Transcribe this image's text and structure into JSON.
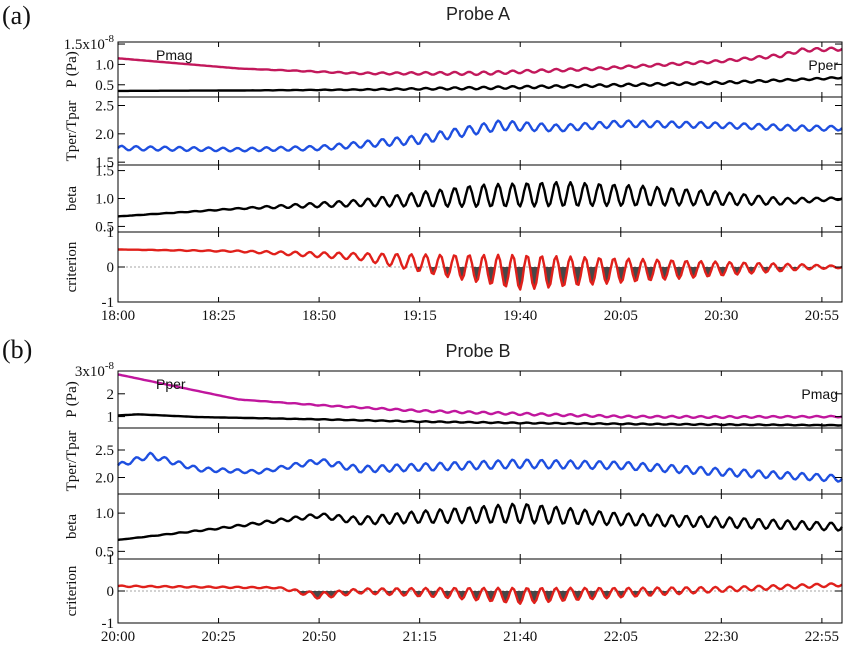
{
  "chart_data": [
    {
      "type": "line",
      "panel_label": "(a)",
      "title": "Probe A",
      "x_ticks": [
        "18:00",
        "18:25",
        "18:50",
        "19:15",
        "19:40",
        "20:05",
        "20:30",
        "20:55"
      ],
      "xlim": [
        "18:00",
        "21:00"
      ],
      "subplots": [
        {
          "ylabel": "P (Pa)",
          "ylim": [
            0.2,
            1.55
          ],
          "yticks": [
            "0.5",
            "1.0",
            "1.5x10-8"
          ],
          "tick_values": [
            0.5,
            1.0,
            1.5
          ],
          "exponent_note": "x10-8",
          "annotations": [
            {
              "text": "Pmag",
              "anchor": "top-left"
            },
            {
              "text": "Pper",
              "anchor": "right"
            }
          ],
          "series": [
            {
              "name": "Pmag",
              "color": "#c2185b",
              "x": [
                "18:00",
                "18:30",
                "19:00",
                "19:30",
                "20:00",
                "20:30",
                "20:45",
                "20:50",
                "21:00"
              ],
              "y": [
                1.15,
                0.9,
                0.78,
                0.78,
                0.9,
                1.08,
                1.22,
                1.35,
                1.38
              ],
              "ripple_amp": [
                0,
                0,
                0.02,
                0.04,
                0.03,
                0.03,
                0.04,
                0.04,
                0.04
              ]
            },
            {
              "name": "Pper",
              "color": "#000000",
              "x": [
                "18:00",
                "18:30",
                "19:00",
                "19:30",
                "20:00",
                "20:30",
                "20:55",
                "21:00"
              ],
              "y": [
                0.35,
                0.36,
                0.38,
                0.42,
                0.48,
                0.55,
                0.65,
                0.68
              ],
              "ripple_amp": [
                0,
                0,
                0.01,
                0.03,
                0.03,
                0.03,
                0.02,
                0.02
              ]
            }
          ]
        },
        {
          "ylabel": "Tper/Tpar",
          "ylim": [
            1.45,
            2.65
          ],
          "yticks": [
            "1.5",
            "2.0",
            "2.5"
          ],
          "tick_values": [
            1.5,
            2.0,
            2.5
          ],
          "series": [
            {
              "name": "",
              "color": "#1e4fe0",
              "x": [
                "18:00",
                "18:30",
                "18:50",
                "19:15",
                "19:35",
                "19:50",
                "20:05",
                "20:30",
                "20:50",
                "21:00"
              ],
              "y": [
                1.75,
                1.72,
                1.75,
                1.9,
                2.15,
                2.1,
                2.18,
                2.15,
                2.1,
                2.1
              ],
              "ripple_amp": [
                0.04,
                0.03,
                0.04,
                0.08,
                0.09,
                0.06,
                0.06,
                0.05,
                0.05,
                0.04
              ]
            }
          ]
        },
        {
          "ylabel": "beta",
          "ylim": [
            0.4,
            1.6
          ],
          "yticks": [
            "0.5",
            "1.0",
            "1.5"
          ],
          "tick_values": [
            0.5,
            1.0,
            1.5
          ],
          "series": [
            {
              "name": "",
              "color": "#000000",
              "x": [
                "18:00",
                "18:30",
                "19:00",
                "19:30",
                "19:50",
                "20:10",
                "20:30",
                "20:45",
                "21:00"
              ],
              "y": [
                0.68,
                0.82,
                0.92,
                1.05,
                1.08,
                1.05,
                1.0,
                0.95,
                1.0
              ],
              "ripple_amp": [
                0,
                0.01,
                0.06,
                0.2,
                0.22,
                0.18,
                0.12,
                0.06,
                0.02
              ]
            }
          ]
        },
        {
          "ylabel": "criterion",
          "ylim": [
            -1,
            1
          ],
          "yticks": [
            "-1",
            "0",
            "1"
          ],
          "tick_values": [
            -1,
            0,
            1
          ],
          "series": [
            {
              "name": "",
              "color": "#e0201b",
              "x": [
                "18:00",
                "18:30",
                "19:00",
                "19:20",
                "19:40",
                "20:05",
                "20:30",
                "20:50",
                "21:00"
              ],
              "y": [
                0.5,
                0.45,
                0.3,
                0.05,
                -0.15,
                -0.1,
                -0.05,
                0.0,
                0.0
              ],
              "ripple_amp": [
                0,
                0.02,
                0.1,
                0.3,
                0.5,
                0.35,
                0.2,
                0.08,
                0.03
              ]
            }
          ]
        }
      ]
    },
    {
      "type": "line",
      "panel_label": "(b)",
      "title": "Probe B",
      "x_ticks": [
        "20:00",
        "20:25",
        "20:50",
        "21:15",
        "21:40",
        "22:05",
        "22:30",
        "22:55"
      ],
      "xlim": [
        "20:00",
        "23:00"
      ],
      "subplots": [
        {
          "ylabel": "P (Pa)",
          "ylim": [
            0.5,
            3.0
          ],
          "yticks": [
            "1",
            "2",
            "3x10-8"
          ],
          "tick_values": [
            1,
            2,
            3
          ],
          "exponent_note": "x10-8",
          "annotations": [
            {
              "text": "Pper",
              "anchor": "top-left"
            },
            {
              "text": "Pmag",
              "anchor": "right"
            }
          ],
          "series": [
            {
              "name": "Pmag",
              "color": "#c0169d",
              "x": [
                "20:00",
                "20:15",
                "20:30",
                "20:50",
                "21:15",
                "21:40",
                "22:05",
                "22:30",
                "23:00"
              ],
              "y": [
                2.85,
                2.3,
                1.75,
                1.5,
                1.25,
                1.12,
                1.0,
                0.98,
                1.0
              ],
              "ripple_amp": [
                0,
                0,
                0,
                0.02,
                0.04,
                0.05,
                0.04,
                0.04,
                0.03
              ]
            },
            {
              "name": "Pper",
              "color": "#000000",
              "x": [
                "20:00",
                "20:05",
                "20:20",
                "20:50",
                "21:15",
                "21:40",
                "22:05",
                "22:30",
                "23:00"
              ],
              "y": [
                1.05,
                1.1,
                0.98,
                0.88,
                0.78,
                0.72,
                0.68,
                0.65,
                0.62
              ],
              "ripple_amp": [
                0,
                0,
                0,
                0.01,
                0.02,
                0.02,
                0.02,
                0.02,
                0.01
              ]
            }
          ]
        },
        {
          "ylabel": "Tper/Tpar",
          "ylim": [
            1.7,
            2.9
          ],
          "yticks": [
            "2.0",
            "2.5"
          ],
          "tick_values": [
            2.0,
            2.5
          ],
          "series": [
            {
              "name": "",
              "color": "#1e4fe0",
              "x": [
                "20:00",
                "20:08",
                "20:20",
                "20:35",
                "20:50",
                "21:00",
                "21:40",
                "22:05",
                "22:30",
                "23:00"
              ],
              "y": [
                2.22,
                2.4,
                2.15,
                2.1,
                2.3,
                2.15,
                2.25,
                2.22,
                2.1,
                1.98
              ],
              "ripple_amp": [
                0.04,
                0.05,
                0.04,
                0.03,
                0.05,
                0.06,
                0.08,
                0.07,
                0.07,
                0.06
              ]
            }
          ]
        },
        {
          "ylabel": "beta",
          "ylim": [
            0.4,
            1.25
          ],
          "yticks": [
            "0.5",
            "1.0"
          ],
          "tick_values": [
            0.5,
            1.0
          ],
          "series": [
            {
              "name": "",
              "color": "#000000",
              "x": [
                "20:00",
                "20:25",
                "20:50",
                "21:00",
                "21:15",
                "21:40",
                "22:05",
                "22:30",
                "23:00"
              ],
              "y": [
                0.65,
                0.8,
                0.97,
                0.9,
                0.95,
                1.0,
                0.92,
                0.88,
                0.82
              ],
              "ripple_amp": [
                0,
                0.01,
                0.03,
                0.05,
                0.08,
                0.13,
                0.08,
                0.07,
                0.05
              ]
            }
          ]
        },
        {
          "ylabel": "criterion",
          "ylim": [
            -1,
            1
          ],
          "yticks": [
            "-1",
            "0",
            "1"
          ],
          "tick_values": [
            -1,
            0,
            1
          ],
          "series": [
            {
              "name": "",
              "color": "#e0201b",
              "x": [
                "20:00",
                "20:40",
                "20:50",
                "21:00",
                "21:20",
                "21:40",
                "22:05",
                "22:30",
                "23:00"
              ],
              "y": [
                0.15,
                0.1,
                -0.15,
                0.0,
                -0.05,
                -0.15,
                -0.05,
                0.05,
                0.2
              ],
              "ripple_amp": [
                0.02,
                0.02,
                0.1,
                0.08,
                0.15,
                0.25,
                0.15,
                0.08,
                0.05
              ]
            }
          ]
        }
      ]
    }
  ]
}
